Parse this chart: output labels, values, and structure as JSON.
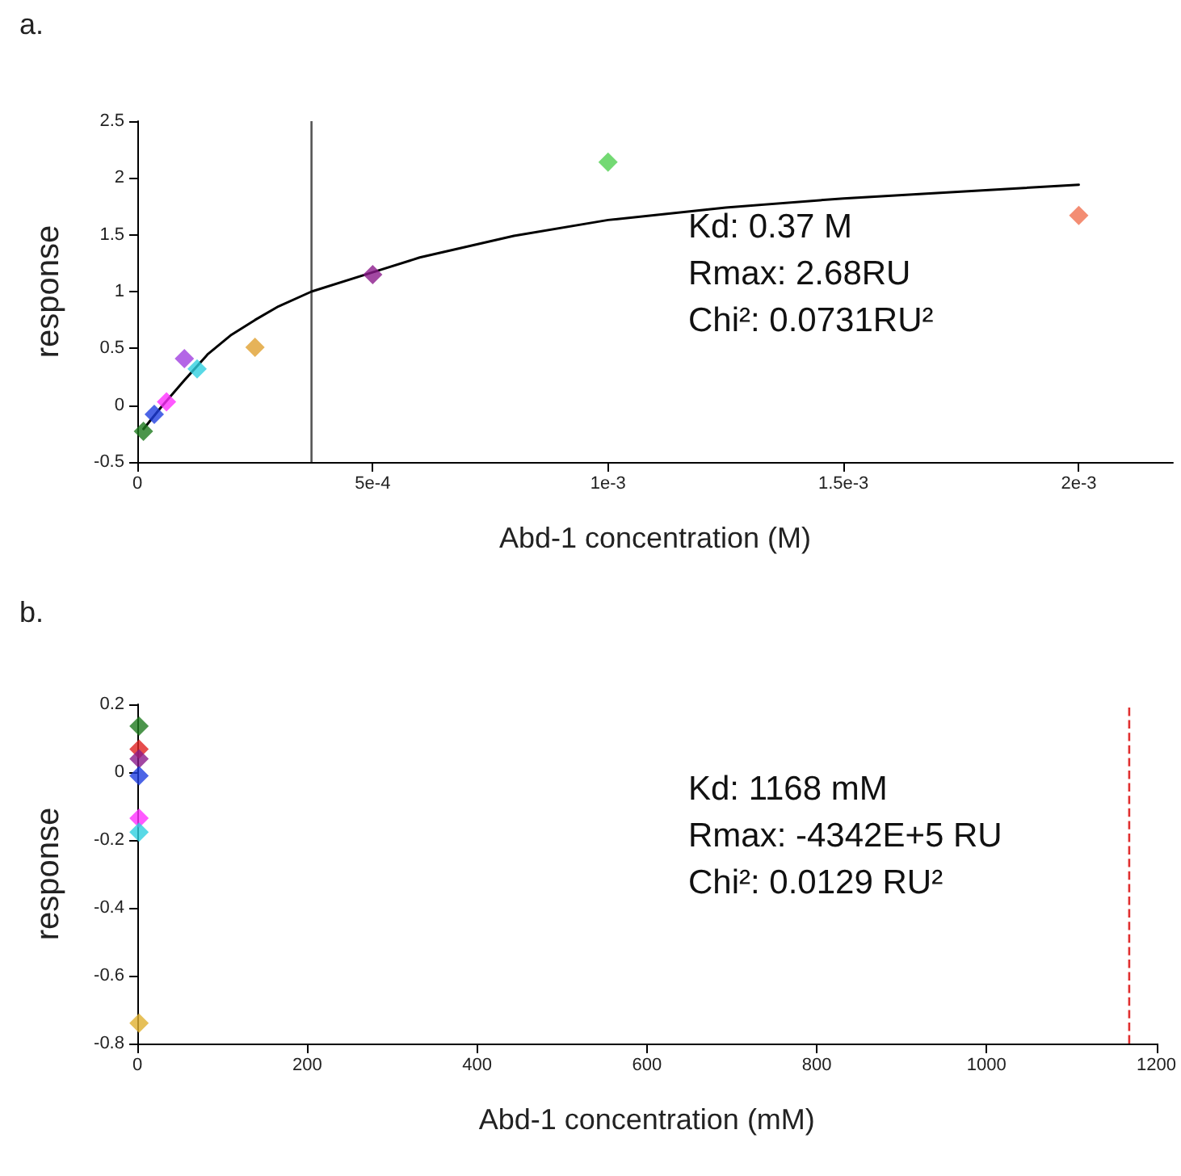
{
  "chart_data": [
    {
      "type": "scatter",
      "xlabel": "Abd-1 concentration (M)",
      "ylabel": "response",
      "marker": "diamond",
      "xlim": [
        0,
        0.0022
      ],
      "xticks": [
        0,
        {
          "value": 0.0005,
          "label": "5e-4"
        },
        {
          "value": 0.001,
          "label": "1e-3"
        },
        {
          "value": 0.0015,
          "label": "1.5e-3"
        },
        {
          "value": 0.002,
          "label": "2e-3"
        }
      ],
      "ylim": [
        -0.5,
        2.5
      ],
      "yticks": [
        -0.5,
        0,
        0.5,
        1,
        1.5,
        2,
        2.5
      ],
      "series": [
        {
          "x": [
            1.3e-05,
            3.6e-05,
            6.2e-05,
            0.0001,
            0.000127,
            0.00025,
            0.0005,
            0.001,
            0.002
          ],
          "values": [
            -0.23,
            -0.08,
            0.03,
            0.41,
            0.32,
            0.51,
            1.15,
            2.14,
            1.67
          ],
          "colors": [
            "#1e7b1e",
            "#1f3fe0",
            "#ff30ff",
            "#a040e0",
            "#30d0e0",
            "#e0a030",
            "#8b1a8b",
            "#50d050",
            "#f07050"
          ]
        },
        {
          "type": "line",
          "marker": "none",
          "color": "#000000",
          "x": [
            1.3e-05,
            5e-05,
            0.0001,
            0.00015,
            0.0002,
            0.00025,
            0.0003,
            0.00037,
            0.0005,
            0.0006,
            0.0008,
            0.001,
            0.00125,
            0.0015,
            0.00175,
            0.002
          ],
          "values": [
            -0.21,
            -0.02,
            0.22,
            0.45,
            0.62,
            0.75,
            0.87,
            1.0,
            1.17,
            1.3,
            1.49,
            1.63,
            1.74,
            1.82,
            1.88,
            1.94
          ]
        }
      ],
      "ref_lines": [
        {
          "axis": "x",
          "value": 0.00037,
          "color": "#555555",
          "line_style": "solid"
        }
      ],
      "annotations": [
        "a.",
        "Kd: 0.37 M",
        "Rmax: 2.68RU",
        "Chi²: 0.0731RU²"
      ]
    },
    {
      "type": "scatter",
      "xlabel": "Abd-1 concentration (mM)",
      "ylabel": "response",
      "marker": "diamond",
      "xlim": [
        0,
        1200
      ],
      "xticks": [
        0,
        200,
        400,
        600,
        800,
        1000,
        1200
      ],
      "ylim": [
        -0.8,
        0.2
      ],
      "yticks": [
        -0.8,
        -0.6,
        -0.4,
        -0.2,
        0,
        0.2
      ],
      "series": [
        {
          "x": [
            2,
            2,
            2,
            2,
            2,
            2,
            2
          ],
          "values": [
            0.136,
            0.068,
            0.039,
            -0.011,
            -0.136,
            -0.177,
            -0.74
          ],
          "colors": [
            "#1e7b1e",
            "#e02020",
            "#8b1a8b",
            "#1f3fe0",
            "#ff30ff",
            "#30d0e0",
            "#e0b030"
          ]
        }
      ],
      "ref_lines": [
        {
          "axis": "x",
          "value": 1168,
          "color": "#e03030",
          "line_style": "dashed"
        }
      ],
      "annotations": [
        "b.",
        "Kd: 1168 mM",
        "Rmax: -4342E+5 RU",
        "Chi²: 0.0129 RU²"
      ]
    }
  ]
}
